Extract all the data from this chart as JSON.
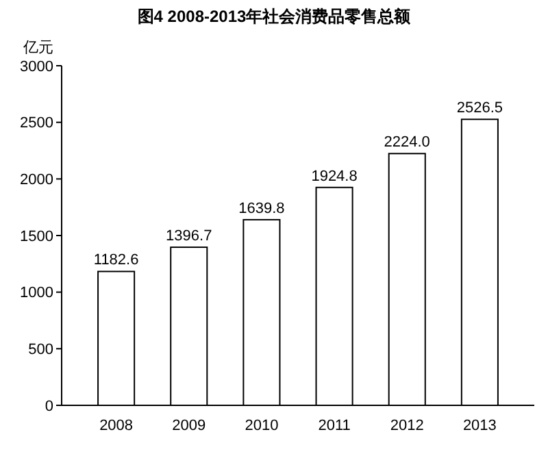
{
  "chart_data": {
    "type": "bar",
    "title": "图4 2008-2013年社会消费品零售总额",
    "ylabel": "亿元",
    "categories": [
      "2008",
      "2009",
      "2010",
      "2011",
      "2012",
      "2013"
    ],
    "values": [
      1182.6,
      1396.7,
      1639.8,
      1924.8,
      2224.0,
      2526.5
    ],
    "value_labels": [
      "1182.6",
      "1396.7",
      "1639.8",
      "1924.8",
      "2224.0",
      "2526.5"
    ],
    "color": "#ffffff",
    "ylim": [
      0,
      3000
    ],
    "yticks": [
      0,
      500,
      1000,
      1500,
      2000,
      2500,
      3000
    ],
    "grid": false
  }
}
